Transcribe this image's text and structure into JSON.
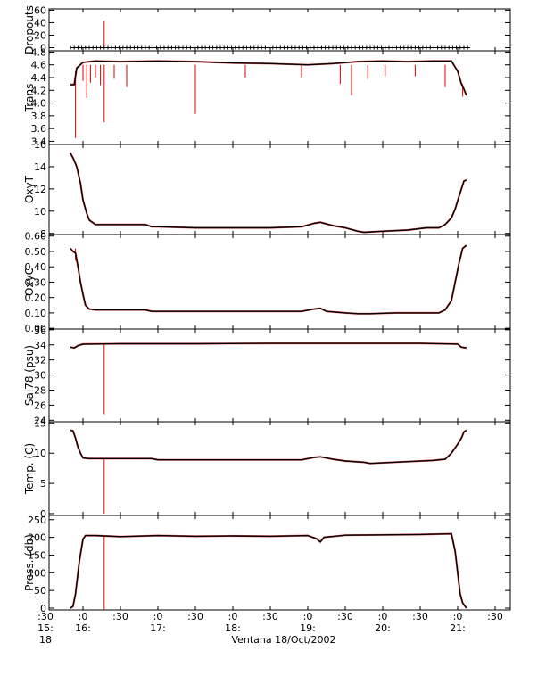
{
  "chart_data": {
    "type": "line",
    "caption": "Ventana 18/Oct/2002",
    "colors": {
      "raw": "#e00000",
      "smoothed": "#000000",
      "axes": "#000000",
      "gridline": "#c8c8c8"
    },
    "xaxis": {
      "range_minutes_after_1530": [
        0,
        330
      ],
      "ticks": [
        {
          "t": 0,
          "line1": ":30",
          "line2": "15:",
          "line3": "18"
        },
        {
          "t": 30,
          "line1": ":0",
          "line2": "16:",
          "line3": ""
        },
        {
          "t": 60,
          "line1": ":30",
          "line2": "",
          "line3": ""
        },
        {
          "t": 90,
          "line1": ":0",
          "line2": "17:",
          "line3": ""
        },
        {
          "t": 120,
          "line1": ":30",
          "line2": "",
          "line3": ""
        },
        {
          "t": 150,
          "line1": ":0",
          "line2": "18:",
          "line3": ""
        },
        {
          "t": 180,
          "line1": ":30",
          "line2": "",
          "line3": ""
        },
        {
          "t": 210,
          "line1": ":0",
          "line2": "19:",
          "line3": ""
        },
        {
          "t": 240,
          "line1": ":30",
          "line2": "",
          "line3": ""
        },
        {
          "t": 270,
          "line1": ":0",
          "line2": "20:",
          "line3": ""
        },
        {
          "t": 300,
          "line1": ":30",
          "line2": "",
          "line3": ""
        },
        {
          "t": 330,
          "line1": ":0",
          "line2": "21:",
          "line3": ""
        },
        {
          "t": 360,
          "line1": ":30",
          "line2": "",
          "line3": ""
        }
      ],
      "visible_range": [
        0,
        360
      ]
    },
    "panels": [
      {
        "id": "dropouts",
        "ylabel": "Dropouts",
        "ylim": [
          -5,
          62
        ],
        "yticks": [
          0,
          20,
          40,
          60
        ],
        "yticklabels": [
          "0",
          "20",
          "40",
          "60"
        ],
        "series": [
          {
            "style": "dotted-line",
            "x": [
              20,
              340
            ],
            "y": [
              0,
              0
            ]
          }
        ],
        "spikes": [
          {
            "x": 47,
            "from": 0,
            "to": 43
          }
        ]
      },
      {
        "id": "trans",
        "ylabel": "Trans",
        "ylim": [
          3.35,
          4.82
        ],
        "yticks": [
          3.4,
          3.6,
          3.8,
          4.0,
          4.2,
          4.4,
          4.6,
          4.8
        ],
        "yticklabels": [
          "3.4",
          "3.6",
          "3.8",
          "4.0",
          "4.2",
          "4.4",
          "4.6",
          "4.8"
        ],
        "series": [
          {
            "x": [
              20,
              23,
              25,
              30,
              40,
              60,
              90,
              120,
              150,
              180,
              210,
              230,
              250,
              270,
              290,
              310,
              325,
              330,
              333,
              335,
              337
            ],
            "y": [
              4.29,
              4.29,
              4.55,
              4.64,
              4.66,
              4.65,
              4.66,
              4.65,
              4.63,
              4.62,
              4.6,
              4.62,
              4.65,
              4.66,
              4.65,
              4.66,
              4.66,
              4.5,
              4.3,
              4.22,
              4.12
            ]
          }
        ],
        "spikes": [
          {
            "x": 24,
            "from": 4.5,
            "to": 3.45
          },
          {
            "x": 30,
            "from": 4.6,
            "to": 4.35
          },
          {
            "x": 33,
            "from": 4.6,
            "to": 4.08
          },
          {
            "x": 36,
            "from": 4.6,
            "to": 4.32
          },
          {
            "x": 40,
            "from": 4.6,
            "to": 4.4
          },
          {
            "x": 44,
            "from": 4.6,
            "to": 4.28
          },
          {
            "x": 47,
            "from": 4.6,
            "to": 3.7
          },
          {
            "x": 55,
            "from": 4.6,
            "to": 4.38
          },
          {
            "x": 65,
            "from": 4.6,
            "to": 4.25
          },
          {
            "x": 120,
            "from": 4.6,
            "to": 3.83
          },
          {
            "x": 160,
            "from": 4.6,
            "to": 4.4
          },
          {
            "x": 205,
            "from": 4.6,
            "to": 4.4
          },
          {
            "x": 236,
            "from": 4.6,
            "to": 4.3
          },
          {
            "x": 245,
            "from": 4.6,
            "to": 4.12
          },
          {
            "x": 258,
            "from": 4.6,
            "to": 4.38
          },
          {
            "x": 272,
            "from": 4.6,
            "to": 4.42
          },
          {
            "x": 296,
            "from": 4.6,
            "to": 4.42
          },
          {
            "x": 320,
            "from": 4.6,
            "to": 4.25
          },
          {
            "x": 334,
            "from": 4.3,
            "to": 4.1
          }
        ]
      },
      {
        "id": "oxyt",
        "ylabel": "OxyT",
        "ylim": [
          7.9,
          16
        ],
        "yticks": [
          8,
          10,
          12,
          14,
          16
        ],
        "yticklabels": [
          "8",
          "10",
          "12",
          "14",
          "16"
        ],
        "series": [
          {
            "x": [
              20,
              22,
              25,
              28,
              30,
              33,
              35,
              40,
              60,
              80,
              85,
              90,
              120,
              180,
              205,
              215,
              220,
              230,
              240,
              250,
              255,
              270,
              290,
              305,
              315,
              320,
              325,
              328,
              331,
              333,
              335,
              337
            ],
            "y": [
              15.2,
              14.8,
              14.0,
              12.5,
              11.0,
              9.8,
              9.2,
              8.8,
              8.8,
              8.8,
              8.6,
              8.6,
              8.5,
              8.5,
              8.6,
              8.9,
              9.0,
              8.7,
              8.5,
              8.2,
              8.1,
              8.2,
              8.3,
              8.5,
              8.5,
              8.8,
              9.4,
              10.2,
              11.3,
              12.0,
              12.7,
              12.8
            ]
          }
        ]
      },
      {
        "id": "oxyc",
        "ylabel": "OxyC",
        "ylim": [
          -0.005,
          0.61
        ],
        "yticks": [
          0.0,
          0.1,
          0.2,
          0.3,
          0.4,
          0.5,
          0.6
        ],
        "yticklabels": [
          "0.00",
          "0.10",
          "0.20",
          "0.30",
          "0.40",
          "0.50",
          "0.60"
        ],
        "series": [
          {
            "x": [
              20,
              22,
              24,
              26,
              28,
              30,
              32,
              35,
              40,
              60,
              80,
              85,
              90,
              120,
              180,
              205,
              215,
              220,
              225,
              240,
              250,
              260,
              280,
              300,
              315,
              320,
              325,
              328,
              331,
              334,
              337
            ],
            "y": [
              0.52,
              0.5,
              0.49,
              0.4,
              0.3,
              0.22,
              0.15,
              0.125,
              0.12,
              0.12,
              0.12,
              0.11,
              0.11,
              0.11,
              0.11,
              0.11,
              0.125,
              0.13,
              0.11,
              0.1,
              0.095,
              0.095,
              0.1,
              0.1,
              0.1,
              0.12,
              0.18,
              0.3,
              0.42,
              0.52,
              0.54
            ]
          }
        ],
        "spikes": [
          {
            "x": 24,
            "from": 0.52,
            "to": 0.44
          }
        ]
      },
      {
        "id": "sal78",
        "ylabel": "Sal78 (psu)",
        "ylim": [
          23.8,
          36.1
        ],
        "yticks": [
          24,
          26,
          28,
          30,
          32,
          34,
          36
        ],
        "yticklabels": [
          "24",
          "26",
          "28",
          "30",
          "32",
          "34",
          "36"
        ],
        "series": [
          {
            "x": [
              20,
              23,
              26,
              30,
              60,
              120,
              180,
              240,
              300,
              330,
              333,
              337
            ],
            "y": [
              33.7,
              33.6,
              33.9,
              34.1,
              34.15,
              34.15,
              34.2,
              34.2,
              34.2,
              34.1,
              33.7,
              33.6
            ]
          }
        ],
        "spikes": [
          {
            "x": 47,
            "from": 34.1,
            "to": 24.8
          }
        ]
      },
      {
        "id": "temp",
        "ylabel": "Temp. (C)",
        "ylim": [
          -0.3,
          15.2
        ],
        "yticks": [
          0,
          5,
          10,
          15
        ],
        "yticklabels": [
          "0",
          "5",
          "10",
          "15"
        ],
        "series": [
          {
            "x": [
              20,
              22,
              24,
              26,
              28,
              30,
              35,
              60,
              85,
              90,
              120,
              180,
              205,
              215,
              220,
              230,
              240,
              255,
              260,
              290,
              310,
              320,
              325,
              330,
              333,
              335,
              337
            ],
            "y": [
              13.8,
              13.7,
              12.5,
              11.0,
              10.0,
              9.2,
              9.1,
              9.1,
              9.1,
              8.9,
              8.9,
              8.9,
              8.9,
              9.3,
              9.4,
              9.0,
              8.7,
              8.5,
              8.3,
              8.6,
              8.8,
              9.0,
              10.0,
              11.5,
              12.5,
              13.5,
              13.8
            ]
          }
        ],
        "spikes": [
          {
            "x": 47,
            "from": 9.0,
            "to": 0.0
          }
        ]
      },
      {
        "id": "press",
        "ylabel": "Press. (db)",
        "ylim": [
          -5,
          262
        ],
        "yticks": [
          0,
          50,
          100,
          150,
          200,
          250
        ],
        "yticklabels": [
          "0",
          "50",
          "100",
          "150",
          "200",
          "250"
        ],
        "series": [
          {
            "x": [
              20,
              22,
              24,
              27,
              30,
              32,
              40,
              60,
              90,
              120,
              150,
              180,
              210,
              217,
              220,
              223,
              240,
              270,
              300,
              325,
              328,
              330,
              332,
              334,
              336,
              337
            ],
            "y": [
              0,
              5,
              40,
              130,
              195,
              205,
              205,
              202,
              205,
              203,
              204,
              203,
              205,
              196,
              187,
              200,
              206,
              207,
              208,
              210,
              160,
              100,
              40,
              15,
              5,
              0
            ]
          }
        ],
        "spikes": [
          {
            "x": 47,
            "from": 205,
            "to": -5
          }
        ]
      }
    ]
  }
}
